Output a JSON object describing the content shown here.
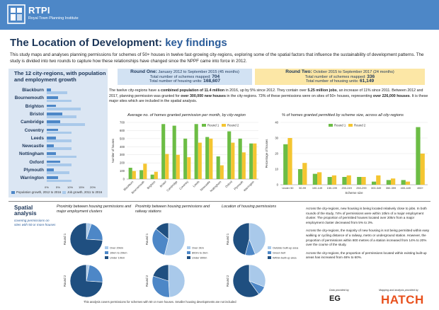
{
  "header": {
    "logo_title": "RTPI",
    "logo_subtitle": "Royal Town Planning Institute"
  },
  "title_main": "The Location of Development:",
  "title_highlight": "key findings",
  "intro": "This study maps and analyses planning permissions for schemes of 50+ houses in twelve fast-growing city-regions, exploring some of the spatial factors that influence the sustainability of development patterns. The study is divided into two rounds to capture how these relationships have changed since the NPPF came into force in 2012.",
  "left_panel": {
    "title": "The 12 city-regions, with population and employment growth",
    "legend_population": "Population growth, 2012 to 2016",
    "legend_jobs": "Job growth, 2011 to 2016"
  },
  "round1": {
    "title": "Round One:",
    "dates": "January 2012 to September 2015 (45 months)",
    "schemes_label": "Total number of schemes mapped:",
    "schemes": "704",
    "units_label": "Total number of housing units:",
    "units": "168,607"
  },
  "round2": {
    "title": "Round Two:",
    "dates": "October 2015 to September 2017 (24 months)",
    "schemes_label": "Total number of schemes mapped:",
    "schemes": "336",
    "units_label": "Total number of housing units:",
    "units": "61,149"
  },
  "mid_text": {
    "a": "The twelve city-regions have a ",
    "b": "combined population of 11.4 million",
    "c": " in 2016, up by 5% since 2012. They contain over ",
    "d": "5.25 million jobs",
    "e": ", an increase of 11% since 2011. Between 2012 and 2017, planning permission was granted for ",
    "f": "over 300,000 new houses",
    "g": " in the city-regions. 73% of these permissions were on sites of 50+ houses, representing ",
    "h": "over 226,000 houses",
    "i": ". It is these major sites which are included in the spatial analysis."
  },
  "colors": {
    "blue": "#4d87c7",
    "light_blue": "#a9c9ea",
    "navy": "#1b3558",
    "green": "#6cbd45",
    "yellow": "#f4c531",
    "pie_dark": "#1f4f80",
    "pie_mid": "#4d87c7",
    "pie_light": "#a9c9ea",
    "orange": "#e8501c"
  },
  "spatial": {
    "title_line1": "Spatial",
    "title_line2": "analysis",
    "subtitle": "covering permissions on sites with 50 or more houses",
    "pie_titles": [
      "Proximity between housing permissions and major employment clusters",
      "Proximity between housing permissions and railway stations",
      "Location of housing permissions"
    ],
    "round1_label": "Round 1",
    "round2_label": "Round 2",
    "legend1": [
      "Over 20km",
      "10km to 20km",
      "Under 10km"
    ],
    "legend2": [
      "Over 2km",
      "800m to 2km",
      "Under 800m"
    ],
    "legend3": [
      "Outside built-up area",
      "Green belt",
      "Within built-up area"
    ]
  },
  "right_text": [
    "Across the city-regions, new housing is being located relatively close to jobs. In both rounds of the study, 74% of permissions were within 10km of a major employment cluster. The proportion of permitted houses located over 20km from a major employment cluster decreased from 5% to 3%.",
    "Across the city-regions, the majority of new housing is not being permitted within easy walking or cycling distance of a railway, metro or underground station. However, the proportion of permissions within 800 metres of a station increased from 14% to 20% over the course of the study.",
    "Across the city-regions, the proportion of permissions located within existing built-up areas has increased from 46% to 60%."
  ],
  "footnote": "This analysis covers permissions for schemes with 50 or more houses. Smaller housing developments are not included",
  "footer": {
    "data_by": "Data provided by",
    "data_logo": "EG",
    "mapped_by": "Mapping and analysis provided by",
    "mapped_logo": "HATCH"
  },
  "chart_data": [
    {
      "type": "bar",
      "orientation": "horizontal",
      "categories": [
        "Blackburn",
        "Bournemouth",
        "Brighton",
        "Bristol",
        "Cambridge",
        "Coventry",
        "Leeds",
        "Newcastle",
        "Nottingham",
        "Oxford",
        "Plymouth",
        "Warrington"
      ],
      "series": [
        {
          "name": "Population growth, 2012 to 2016",
          "values": [
            2,
            5,
            4,
            7,
            6,
            5,
            4,
            3,
            4,
            6,
            3,
            5
          ]
        },
        {
          "name": "Job growth, 2011 to 2016",
          "values": [
            9,
            11,
            15,
            13,
            17,
            11,
            11,
            11,
            13,
            11,
            10,
            11
          ]
        }
      ],
      "xticks": [
        "0%",
        "5%",
        "10%",
        "15%",
        "20%"
      ],
      "xlim": [
        0,
        20
      ],
      "legend": "bottom"
    },
    {
      "type": "bar",
      "title": "Average no. of homes granted permission per month, by city-region",
      "ylabel": "Number of houses",
      "ylim": [
        0,
        700
      ],
      "yticks": [
        "0",
        "100",
        "200",
        "300",
        "400",
        "500",
        "600",
        "700"
      ],
      "categories": [
        "Blackburn",
        "Bournemouth",
        "Brighton",
        "Bristol",
        "Cambridge",
        "Coventry",
        "Leeds",
        "Newcastle",
        "Nottingham",
        "Oxford",
        "Plymouth",
        "Warrington"
      ],
      "series": [
        {
          "name": "Round 1",
          "values": [
            140,
            110,
            55,
            680,
            660,
            500,
            680,
            520,
            280,
            590,
            500,
            440
          ]
        },
        {
          "name": "Round 2",
          "values": [
            100,
            190,
            90,
            310,
            300,
            270,
            450,
            500,
            170,
            450,
            330,
            440
          ]
        }
      ],
      "legend": "top-right"
    },
    {
      "type": "bar",
      "title": "% of homes granted permitted by scheme size, across all city-regions",
      "xlabel": "Scheme size",
      "ylabel": "Percentage of houses",
      "ylim": [
        0,
        40
      ],
      "yticks": [
        "0",
        "10",
        "20",
        "30",
        "40"
      ],
      "categories": [
        "Under 50",
        "50-99",
        "100-149",
        "150-199",
        "200-249",
        "250-299",
        "300-349",
        "350-399",
        "400-449",
        "450+"
      ],
      "series": [
        {
          "name": "Round 1",
          "values": [
            26,
            10,
            7,
            5,
            5,
            5,
            2,
            3,
            3,
            37
          ]
        },
        {
          "name": "Round 2",
          "values": [
            30,
            14,
            8,
            6,
            6,
            5,
            6,
            4,
            2,
            20
          ]
        }
      ],
      "legend": "top"
    },
    {
      "type": "pie",
      "title": "Proximity between housing permissions and major employment clusters",
      "categories": [
        "Over 20km",
        "10km to 20km",
        "Under 10km"
      ],
      "series": [
        {
          "name": "Round 1",
          "values": [
            5,
            21,
            74
          ]
        },
        {
          "name": "Round 2",
          "values": [
            3,
            23,
            74
          ]
        }
      ]
    },
    {
      "type": "pie",
      "title": "Proximity between housing permissions and railway stations",
      "categories": [
        "Over 2km",
        "800m to 2km",
        "Under 800m"
      ],
      "series": [
        {
          "name": "Round 1",
          "values": [
            54,
            32,
            14
          ]
        },
        {
          "name": "Round 2",
          "values": [
            49,
            31,
            20
          ]
        }
      ]
    },
    {
      "type": "pie",
      "title": "Location of housing permissions",
      "categories": [
        "Outside built-up area",
        "Green belt",
        "Within built-up area"
      ],
      "series": [
        {
          "name": "Round 1",
          "values": [
            44,
            10,
            46
          ]
        },
        {
          "name": "Round 2",
          "values": [
            31,
            9,
            60
          ]
        }
      ]
    }
  ]
}
